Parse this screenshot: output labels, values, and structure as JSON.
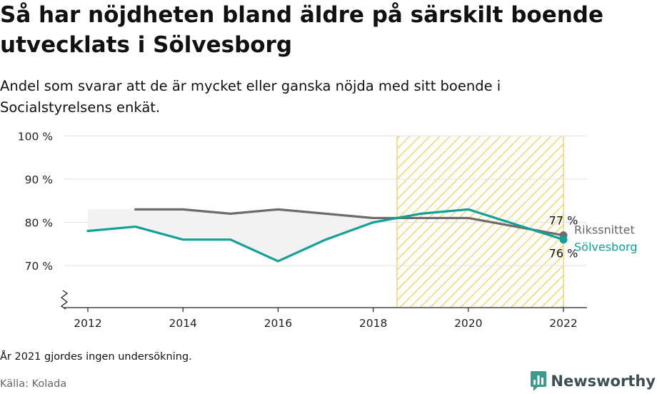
{
  "header": {
    "title": "Så har nöjdheten bland äldre på särskilt boende utvecklats i Sölvesborg",
    "subtitle": "Andel som svarar att de är mycket eller ganska nöjda med sitt boende i Socialstyrelsens enkät."
  },
  "footer": {
    "note": "År 2021 gjordes ingen undersökning.",
    "source": "Källa: Kolada",
    "brand": "Newsworthy"
  },
  "colors": {
    "riket": "#6e6a6e",
    "solvesborg": "#13a096",
    "highlight": "#f5c842",
    "fill": "#f2f2f2"
  },
  "chart_data": {
    "type": "line",
    "x_ticks": [
      "2012",
      "2014",
      "2016",
      "2018",
      "2020",
      "2022"
    ],
    "y_ticks": [
      "70 %",
      "80 %",
      "90 %",
      "100 %"
    ],
    "ylim": [
      60,
      100
    ],
    "xlim": [
      2011.8,
      2022.5
    ],
    "highlight_range": [
      2018.5,
      2022
    ],
    "series": [
      {
        "name": "Rikssnittet",
        "end_label": "77 %",
        "points": [
          [
            2013,
            83
          ],
          [
            2014,
            83
          ],
          [
            2015,
            82
          ],
          [
            2016,
            83
          ],
          [
            2017,
            82
          ],
          [
            2018,
            81
          ],
          [
            2019,
            81
          ],
          [
            2020,
            81
          ],
          [
            2022,
            77
          ]
        ]
      },
      {
        "name": "Sölvesborg",
        "end_label": "76 %",
        "points": [
          [
            2012,
            78
          ],
          [
            2013,
            79
          ],
          [
            2014,
            76
          ],
          [
            2015,
            76
          ],
          [
            2016,
            71
          ],
          [
            2017,
            76
          ],
          [
            2018,
            80
          ],
          [
            2019,
            82
          ],
          [
            2020,
            83
          ],
          [
            2022,
            76
          ]
        ]
      }
    ]
  }
}
